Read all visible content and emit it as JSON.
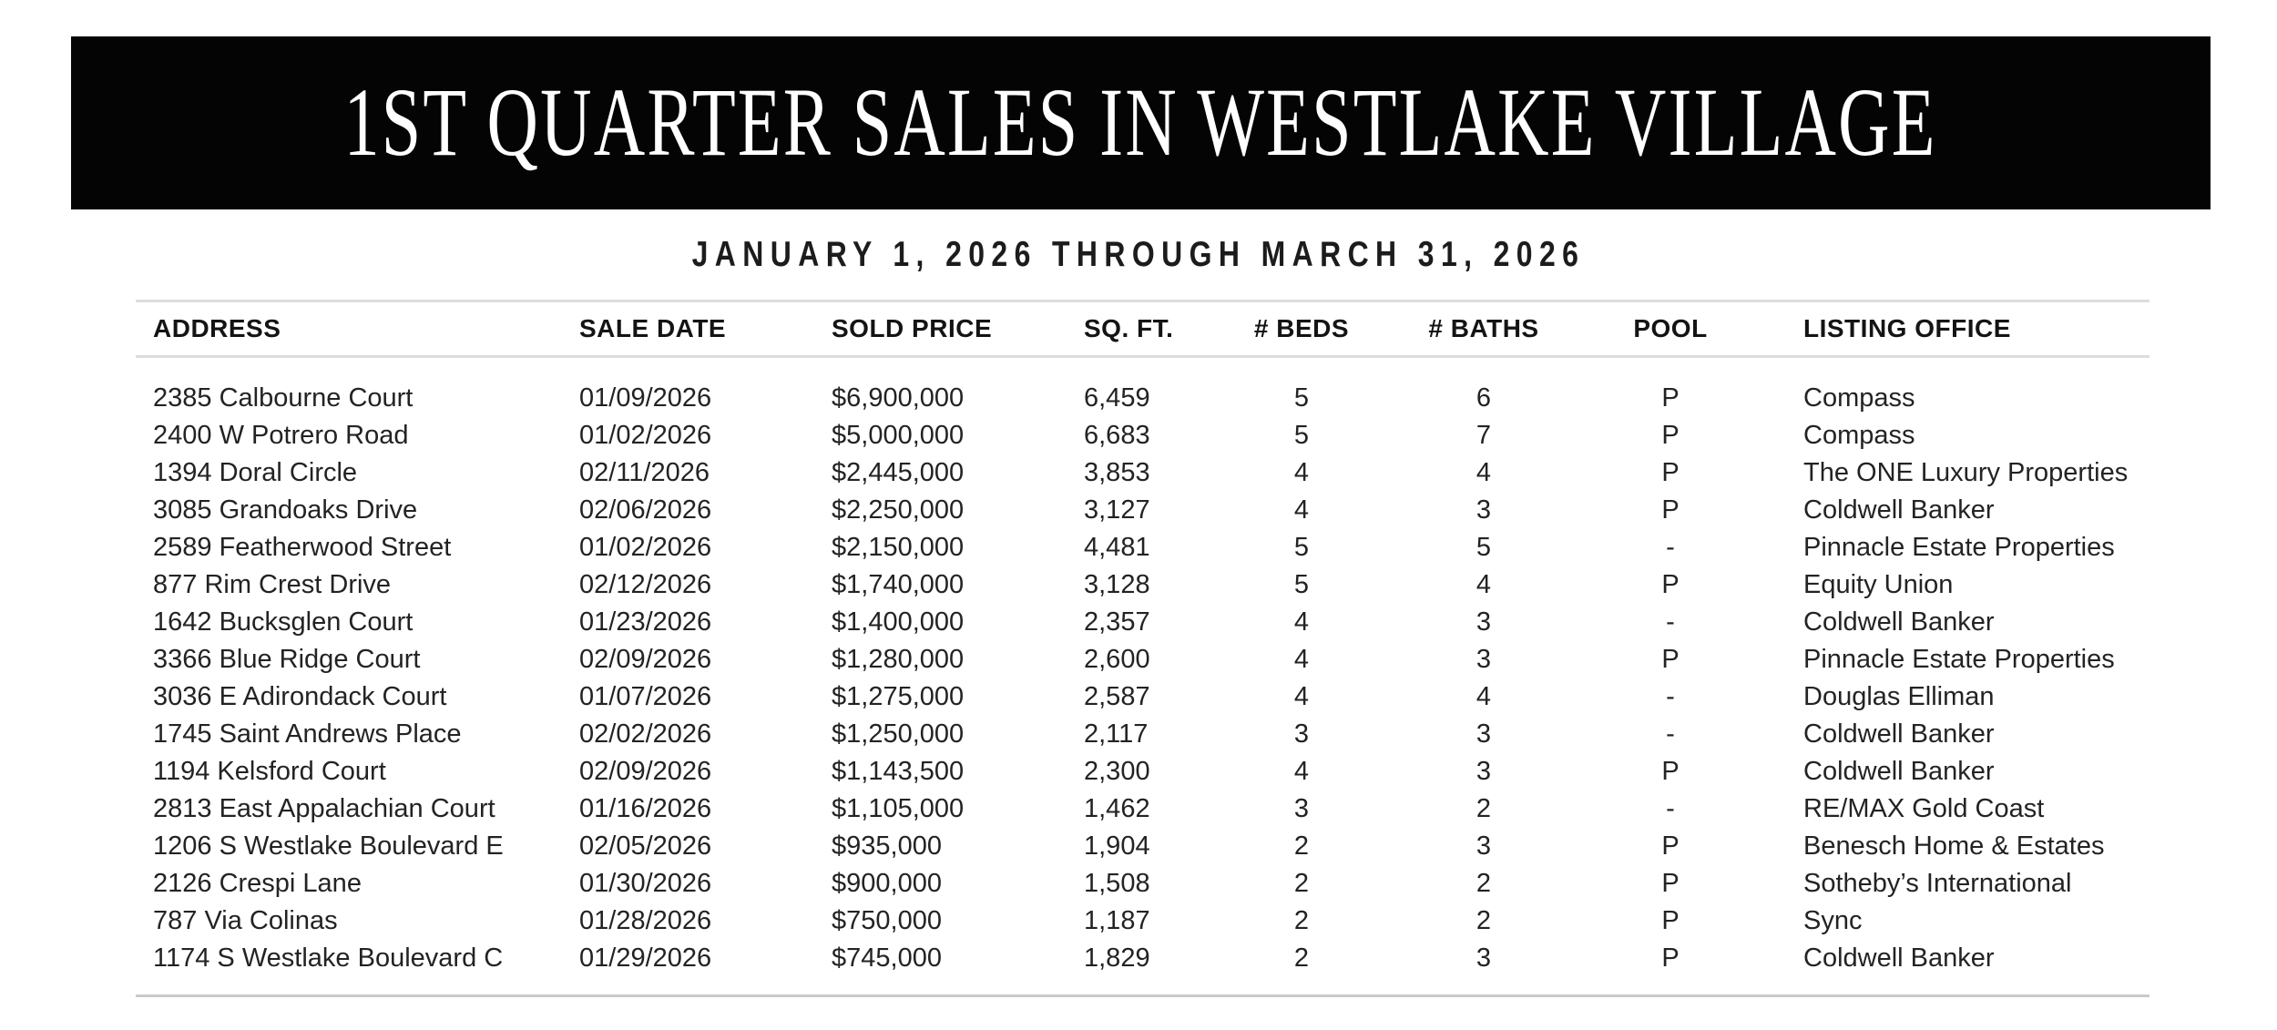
{
  "banner": {
    "title": "1ST QUARTER SALES IN WESTLAKE VILLAGE",
    "background_color": "#040404",
    "text_color": "#ffffff"
  },
  "subtitle": "JANUARY 1, 2026 THROUGH MARCH 31, 2026",
  "colors": {
    "body_text": "#232323",
    "header_text": "#141414",
    "rule_light": "#dcdcdc",
    "rule_bottom": "#c9c9c9",
    "page_background": "#ffffff"
  },
  "table": {
    "columns": [
      {
        "key": "address",
        "label": "ADDRESS",
        "align": "left"
      },
      {
        "key": "sale_date",
        "label": "SALE DATE",
        "align": "left"
      },
      {
        "key": "sold_price",
        "label": "SOLD PRICE",
        "align": "left"
      },
      {
        "key": "sq_ft",
        "label": "SQ. FT.",
        "align": "left"
      },
      {
        "key": "beds",
        "label": "# BEDS",
        "align": "center"
      },
      {
        "key": "baths",
        "label": "# BATHS",
        "align": "center"
      },
      {
        "key": "pool",
        "label": "POOL",
        "align": "center"
      },
      {
        "key": "office",
        "label": "LISTING OFFICE",
        "align": "left"
      }
    ],
    "rows": [
      {
        "address": "2385 Calbourne Court",
        "sale_date": "01/09/2026",
        "sold_price": "$6,900,000",
        "sq_ft": "6,459",
        "beds": "5",
        "baths": "6",
        "pool": "P",
        "office": "Compass"
      },
      {
        "address": "2400 W Potrero Road",
        "sale_date": "01/02/2026",
        "sold_price": "$5,000,000",
        "sq_ft": "6,683",
        "beds": "5",
        "baths": "7",
        "pool": "P",
        "office": "Compass"
      },
      {
        "address": "1394 Doral Circle",
        "sale_date": "02/11/2026",
        "sold_price": "$2,445,000",
        "sq_ft": "3,853",
        "beds": "4",
        "baths": "4",
        "pool": "P",
        "office": "The ONE Luxury Properties"
      },
      {
        "address": "3085 Grandoaks Drive",
        "sale_date": "02/06/2026",
        "sold_price": "$2,250,000",
        "sq_ft": "3,127",
        "beds": "4",
        "baths": "3",
        "pool": "P",
        "office": "Coldwell Banker"
      },
      {
        "address": "2589 Featherwood Street",
        "sale_date": "01/02/2026",
        "sold_price": "$2,150,000",
        "sq_ft": "4,481",
        "beds": "5",
        "baths": "5",
        "pool": "-",
        "office": "Pinnacle Estate Properties"
      },
      {
        "address": "877 Rim Crest Drive",
        "sale_date": "02/12/2026",
        "sold_price": "$1,740,000",
        "sq_ft": "3,128",
        "beds": "5",
        "baths": "4",
        "pool": "P",
        "office": "Equity Union"
      },
      {
        "address": "1642 Bucksglen Court",
        "sale_date": "01/23/2026",
        "sold_price": "$1,400,000",
        "sq_ft": "2,357",
        "beds": "4",
        "baths": "3",
        "pool": "-",
        "office": "Coldwell Banker"
      },
      {
        "address": "3366 Blue Ridge Court",
        "sale_date": "02/09/2026",
        "sold_price": "$1,280,000",
        "sq_ft": "2,600",
        "beds": "4",
        "baths": "3",
        "pool": "P",
        "office": "Pinnacle Estate Properties"
      },
      {
        "address": "3036 E Adirondack Court",
        "sale_date": "01/07/2026",
        "sold_price": "$1,275,000",
        "sq_ft": "2,587",
        "beds": "4",
        "baths": "4",
        "pool": "-",
        "office": "Douglas Elliman"
      },
      {
        "address": "1745 Saint Andrews Place",
        "sale_date": "02/02/2026",
        "sold_price": "$1,250,000",
        "sq_ft": "2,117",
        "beds": "3",
        "baths": "3",
        "pool": "-",
        "office": "Coldwell Banker"
      },
      {
        "address": "1194 Kelsford Court",
        "sale_date": "02/09/2026",
        "sold_price": "$1,143,500",
        "sq_ft": "2,300",
        "beds": "4",
        "baths": "3",
        "pool": "P",
        "office": "Coldwell Banker"
      },
      {
        "address": "2813 East Appalachian Court",
        "sale_date": "01/16/2026",
        "sold_price": "$1,105,000",
        "sq_ft": "1,462",
        "beds": "3",
        "baths": "2",
        "pool": "-",
        "office": "RE/MAX Gold Coast"
      },
      {
        "address": "1206 S Westlake Boulevard E",
        "sale_date": "02/05/2026",
        "sold_price": "$935,000",
        "sq_ft": "1,904",
        "beds": "2",
        "baths": "3",
        "pool": "P",
        "office": "Benesch Home & Estates"
      },
      {
        "address": "2126 Crespi Lane",
        "sale_date": "01/30/2026",
        "sold_price": "$900,000",
        "sq_ft": "1,508",
        "beds": "2",
        "baths": "2",
        "pool": "P",
        "office": "Sotheby’s International"
      },
      {
        "address": "787 Via Colinas",
        "sale_date": "01/28/2026",
        "sold_price": "$750,000",
        "sq_ft": "1,187",
        "beds": "2",
        "baths": "2",
        "pool": "P",
        "office": "Sync"
      },
      {
        "address": "1174 S Westlake Boulevard C",
        "sale_date": "01/29/2026",
        "sold_price": "$745,000",
        "sq_ft": "1,829",
        "beds": "2",
        "baths": "3",
        "pool": "P",
        "office": "Coldwell Banker"
      }
    ]
  }
}
